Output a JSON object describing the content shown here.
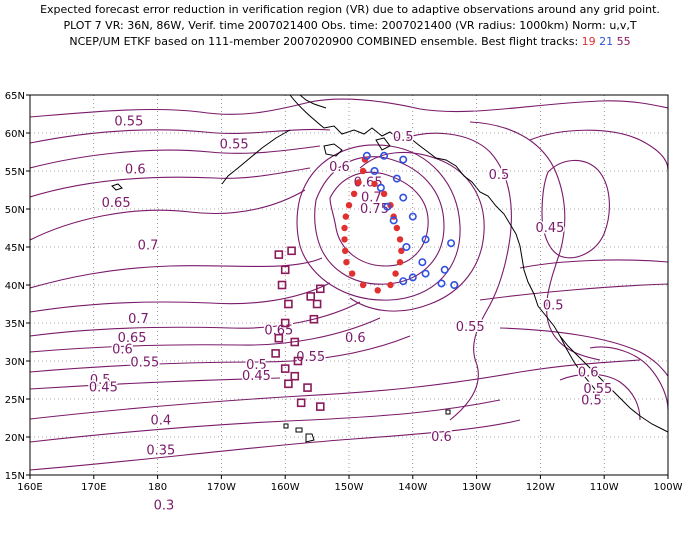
{
  "header": {
    "line1": "Expected forecast error reduction in verification region (VR) due to adaptive observations around any grid point.",
    "line2": "PLOT 7 VR: 36N, 86W, Verif. time 2007021400 Obs. time: 2007021400 (VR radius: 1000km) Norm: u,v,T",
    "line3_prefix": "NCEP/UM ETKF based on 111-member 2007020900 COMBINED ensemble.  Best flight tracks:",
    "tracks": [
      "19",
      "21",
      "55"
    ]
  },
  "axes": {
    "x_labels": [
      "160E",
      "170E",
      "180",
      "170W",
      "160W",
      "150W",
      "140W",
      "130W",
      "120W",
      "110W",
      "100W"
    ],
    "y_labels": [
      "65N",
      "60N",
      "55N",
      "50N",
      "45N",
      "40N",
      "35N",
      "30N",
      "25N",
      "20N",
      "15N"
    ]
  },
  "colors": {
    "contour": "#7a1a6a",
    "coast": "#000000",
    "grid": "#555555",
    "track19": "#e03030",
    "track21": "#3050e0",
    "track55": "#8a1a5a",
    "vr_circle": "#e03030"
  },
  "contour_labels": [
    {
      "text": "0.55",
      "lon": 175.5,
      "lat": 61.5
    },
    {
      "text": "0.55",
      "lon": 192.0,
      "lat": 58.5
    },
    {
      "text": "0.6",
      "lon": 176.5,
      "lat": 55.2
    },
    {
      "text": "0.65",
      "lon": 173.5,
      "lat": 50.8
    },
    {
      "text": "0.7",
      "lon": 178.5,
      "lat": 45.2
    },
    {
      "text": "0.7",
      "lon": 177.0,
      "lat": 35.5
    },
    {
      "text": "0.65",
      "lon": 176.0,
      "lat": 33.0
    },
    {
      "text": "0.6",
      "lon": 174.5,
      "lat": 31.5
    },
    {
      "text": "0.55",
      "lon": 178.0,
      "lat": 29.8
    },
    {
      "text": "0.5",
      "lon": 171.0,
      "lat": 27.5
    },
    {
      "text": "0.45",
      "lon": 171.5,
      "lat": 26.5
    },
    {
      "text": "0.4",
      "lon": 180.5,
      "lat": 22.2
    },
    {
      "text": "0.35",
      "lon": 180.5,
      "lat": 18.2
    },
    {
      "text": "0.3",
      "lon": 181.0,
      "lat": 11.0
    },
    {
      "text": "0.5",
      "lon": 195.5,
      "lat": 29.5
    },
    {
      "text": "0.45",
      "lon": 195.5,
      "lat": 28.0
    },
    {
      "text": "0.55",
      "lon": 204.0,
      "lat": 30.5
    },
    {
      "text": "0.6",
      "lon": 211.0,
      "lat": 33.0
    },
    {
      "text": "0.65",
      "lon": 199.0,
      "lat": 34.0
    },
    {
      "text": "0.6",
      "lon": 208.5,
      "lat": 55.5
    },
    {
      "text": "0.65",
      "lon": 213.0,
      "lat": 53.5
    },
    {
      "text": "0.7",
      "lon": 213.5,
      "lat": 51.5
    },
    {
      "text": "0.75",
      "lon": 214.0,
      "lat": 50.0
    },
    {
      "text": "0.5",
      "lon": 218.5,
      "lat": 59.5
    },
    {
      "text": "0.5",
      "lon": 233.5,
      "lat": 54.5
    },
    {
      "text": "0.45",
      "lon": 241.5,
      "lat": 47.5
    },
    {
      "text": "0.5",
      "lon": 242.0,
      "lat": 37.3
    },
    {
      "text": "0.55",
      "lon": 229.0,
      "lat": 34.5
    },
    {
      "text": "0.6",
      "lon": 247.5,
      "lat": 28.5
    },
    {
      "text": "0.55",
      "lon": 249.0,
      "lat": 26.3
    },
    {
      "text": "0.5",
      "lon": 248.0,
      "lat": 24.8
    },
    {
      "text": "0.6",
      "lon": 224.5,
      "lat": 20.0
    }
  ],
  "flight_tracks": [
    {
      "name": "19",
      "marker": "dot",
      "points": [
        [
          212.5,
          56.5
        ],
        [
          212.2,
          55.0
        ],
        [
          211.5,
          53.5
        ],
        [
          210.8,
          52.0
        ],
        [
          210.0,
          50.5
        ],
        [
          209.5,
          49.0
        ],
        [
          209.3,
          47.5
        ],
        [
          209.3,
          46.0
        ],
        [
          209.4,
          44.5
        ],
        [
          209.6,
          43.0
        ],
        [
          210.5,
          41.5
        ],
        [
          212.2,
          40.0
        ],
        [
          214.5,
          39.3
        ],
        [
          216.5,
          40.0
        ],
        [
          217.3,
          41.5
        ],
        [
          218.0,
          43.0
        ],
        [
          218.2,
          44.5
        ],
        [
          218.0,
          46.0
        ],
        [
          217.5,
          47.5
        ],
        [
          217.0,
          49.0
        ],
        [
          216.5,
          50.5
        ],
        [
          215.5,
          52.0
        ],
        [
          214.0,
          53.3
        ]
      ]
    },
    {
      "name": "21",
      "marker": "circle",
      "points": [
        [
          212.8,
          57.0
        ],
        [
          215.5,
          57.0
        ],
        [
          218.5,
          56.5
        ],
        [
          214.0,
          55.0
        ],
        [
          217.5,
          54.0
        ],
        [
          215.0,
          52.8
        ],
        [
          218.5,
          51.5
        ],
        [
          216.0,
          50.3
        ],
        [
          220.0,
          49.0
        ],
        [
          217.0,
          48.5
        ],
        [
          222.0,
          46.0
        ],
        [
          219.0,
          45.0
        ],
        [
          226.0,
          45.5
        ],
        [
          221.5,
          43.0
        ],
        [
          225.0,
          42.0
        ],
        [
          222.0,
          41.5
        ],
        [
          220.0,
          41.0
        ],
        [
          218.5,
          40.5
        ],
        [
          224.5,
          40.2
        ],
        [
          226.5,
          40.0
        ]
      ]
    },
    {
      "name": "55",
      "marker": "square",
      "points": [
        [
          201.0,
          44.5
        ],
        [
          199.0,
          44.0
        ],
        [
          200.0,
          42.0
        ],
        [
          199.5,
          40.0
        ],
        [
          200.5,
          37.5
        ],
        [
          200.0,
          35.0
        ],
        [
          204.5,
          35.5
        ],
        [
          205.0,
          37.5
        ],
        [
          205.5,
          39.5
        ],
        [
          204.0,
          38.5
        ],
        [
          199.0,
          33.0
        ],
        [
          198.5,
          31.0
        ],
        [
          201.5,
          32.5
        ],
        [
          202.0,
          30.0
        ],
        [
          200.0,
          29.0
        ],
        [
          201.5,
          28.0
        ],
        [
          200.5,
          27.0
        ],
        [
          203.5,
          26.5
        ],
        [
          202.5,
          24.5
        ],
        [
          205.5,
          24.0
        ]
      ]
    }
  ]
}
